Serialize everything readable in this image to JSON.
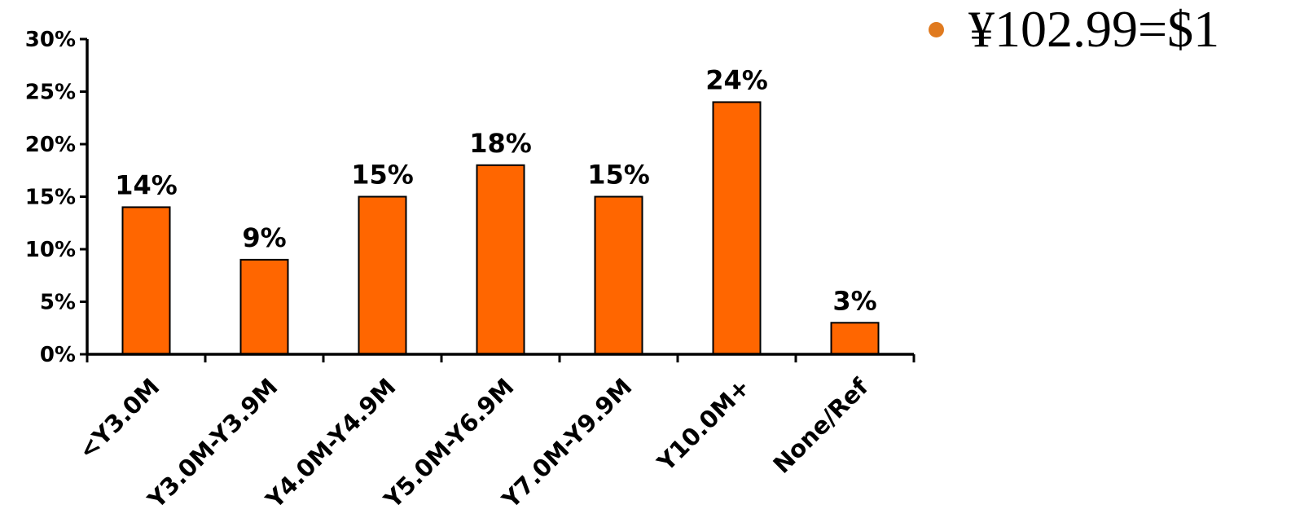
{
  "note": {
    "text": "¥102.99=$1",
    "bullet_color": "#E07A1F"
  },
  "chart_data": {
    "type": "bar",
    "categories": [
      "<Y3.0M",
      "Y3.0M-Y3.9M",
      "Y4.0M-Y4.9M",
      "Y5.0M-Y6.9M",
      "Y7.0M-Y9.9M",
      "Y10.0M+",
      "None/Ref"
    ],
    "values": [
      14,
      9,
      15,
      18,
      15,
      24,
      3
    ],
    "value_labels": [
      "14%",
      "9%",
      "15%",
      "18%",
      "15%",
      "24%",
      "3%"
    ],
    "y_ticks": [
      "0%",
      "5%",
      "10%",
      "15%",
      "20%",
      "25%",
      "30%"
    ],
    "ylim": [
      0,
      30
    ],
    "title": "",
    "xlabel": "",
    "ylabel": "",
    "grid": false,
    "legend": false,
    "bar_color": "#FF6600",
    "bar_edge_color": "#000000"
  }
}
